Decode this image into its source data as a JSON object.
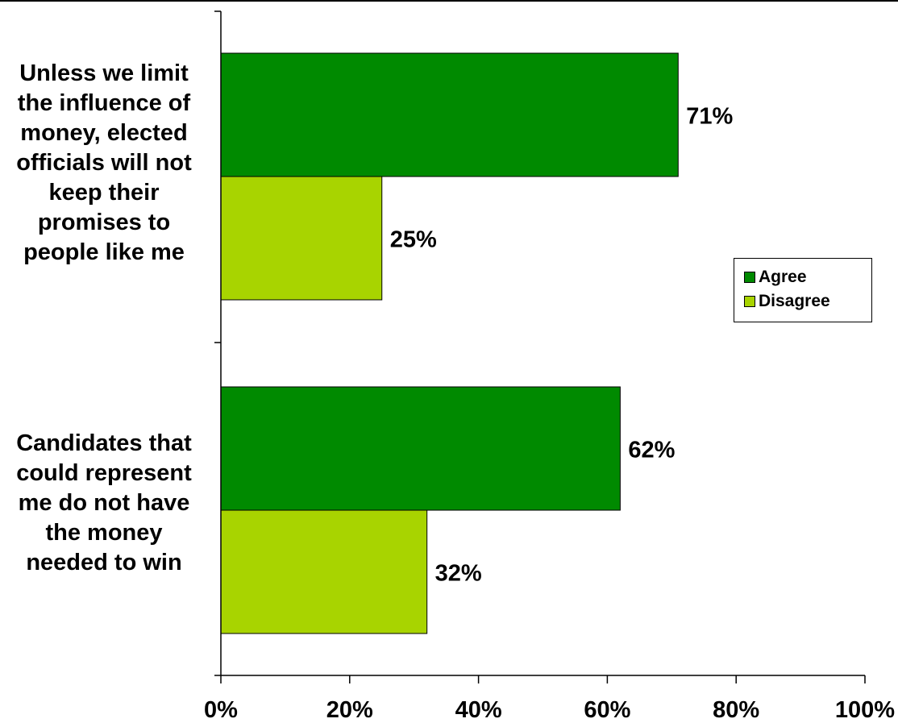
{
  "chart_data": {
    "type": "bar",
    "orientation": "horizontal",
    "categories": [
      "Unless we limit\nthe influence of\nmoney, elected\nofficials will not\nkeep their\npromises to\npeople like me",
      "Candidates that\ncould represent\nme do not have\nthe money\nneeded to win"
    ],
    "series": [
      {
        "name": "Agree",
        "values": [
          71,
          62
        ],
        "color": "#008a00"
      },
      {
        "name": "Disagree",
        "values": [
          25,
          32
        ],
        "color": "#a8d400"
      }
    ],
    "data_labels": [
      [
        "71%",
        "62%"
      ],
      [
        "25%",
        "32%"
      ]
    ],
    "xlim": [
      0,
      100
    ],
    "x_ticks": [
      0,
      20,
      40,
      60,
      80,
      100
    ],
    "x_tick_labels": [
      "0%",
      "20%",
      "40%",
      "60%",
      "80%",
      "100%"
    ],
    "legend_position": "right",
    "grid": false
  }
}
